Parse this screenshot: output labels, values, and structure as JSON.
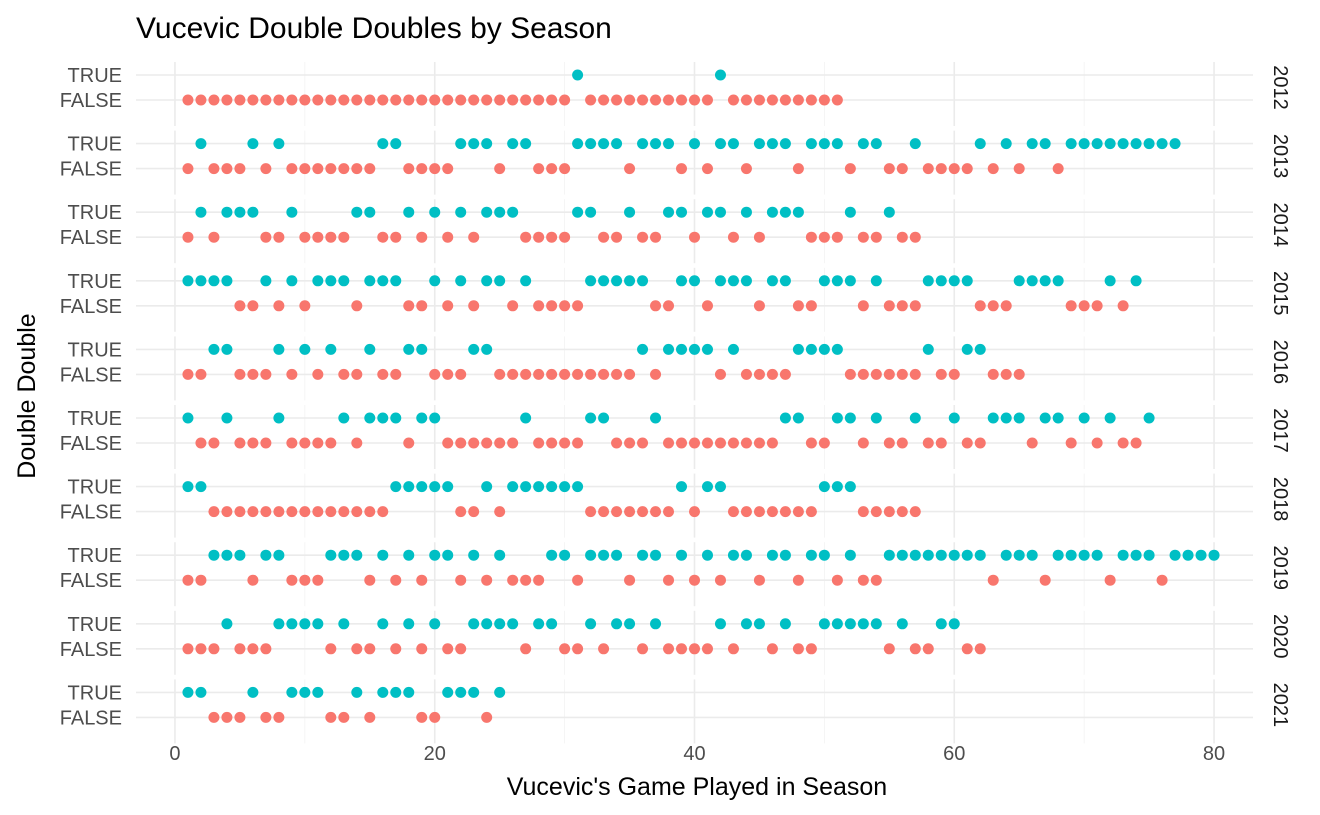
{
  "chart_data": {
    "type": "scatter",
    "facet": "row",
    "title": "Vucevic Double Doubles by Season",
    "xlabel": "Vucevic's Game Played in Season",
    "ylabel": "Double Double",
    "xlim": [
      -3,
      83
    ],
    "x_ticks": [
      0,
      20,
      40,
      60,
      80
    ],
    "y_levels": [
      "FALSE",
      "TRUE"
    ],
    "grid": true,
    "legend": "none",
    "colors": {
      "TRUE": "#00BFC4",
      "FALSE": "#F8766D"
    },
    "panels": [
      {
        "season": "2012",
        "TRUE": [
          31,
          42
        ],
        "FALSE": [
          1,
          2,
          3,
          4,
          5,
          6,
          7,
          8,
          9,
          10,
          11,
          12,
          13,
          14,
          15,
          16,
          17,
          18,
          19,
          20,
          21,
          22,
          23,
          24,
          25,
          26,
          27,
          28,
          29,
          30,
          32,
          33,
          34,
          35,
          36,
          37,
          38,
          39,
          40,
          41,
          43,
          44,
          45,
          46,
          47,
          48,
          49,
          50,
          51
        ]
      },
      {
        "season": "2013",
        "TRUE": [
          2,
          6,
          8,
          16,
          17,
          22,
          23,
          24,
          26,
          27,
          31,
          32,
          33,
          34,
          36,
          37,
          38,
          40,
          42,
          43,
          45,
          46,
          47,
          49,
          50,
          51,
          53,
          54,
          57,
          62,
          64,
          66,
          67,
          69,
          70,
          71,
          72,
          73,
          74,
          75,
          76,
          77
        ],
        "FALSE": [
          1,
          3,
          4,
          5,
          7,
          9,
          10,
          11,
          12,
          13,
          14,
          15,
          18,
          19,
          20,
          21,
          25,
          28,
          29,
          30,
          35,
          39,
          41,
          44,
          48,
          52,
          55,
          56,
          58,
          59,
          60,
          61,
          63,
          65,
          68
        ]
      },
      {
        "season": "2014",
        "TRUE": [
          2,
          4,
          5,
          6,
          9,
          14,
          15,
          18,
          20,
          22,
          24,
          25,
          26,
          31,
          32,
          35,
          38,
          39,
          41,
          42,
          44,
          46,
          47,
          48,
          52,
          55
        ],
        "FALSE": [
          1,
          3,
          7,
          8,
          10,
          11,
          12,
          13,
          16,
          17,
          19,
          21,
          23,
          27,
          28,
          29,
          30,
          33,
          34,
          36,
          37,
          40,
          43,
          45,
          49,
          50,
          51,
          53,
          54,
          56,
          57
        ]
      },
      {
        "season": "2015",
        "TRUE": [
          1,
          2,
          3,
          4,
          7,
          9,
          11,
          12,
          13,
          15,
          16,
          17,
          20,
          22,
          24,
          25,
          27,
          32,
          33,
          34,
          35,
          36,
          39,
          40,
          42,
          43,
          44,
          46,
          47,
          50,
          51,
          52,
          54,
          58,
          59,
          60,
          61,
          65,
          66,
          67,
          68,
          72,
          74
        ],
        "FALSE": [
          5,
          6,
          8,
          10,
          14,
          18,
          19,
          21,
          23,
          26,
          28,
          29,
          30,
          31,
          37,
          38,
          41,
          45,
          48,
          49,
          53,
          55,
          56,
          57,
          62,
          63,
          64,
          69,
          70,
          71,
          73
        ]
      },
      {
        "season": "2016",
        "TRUE": [
          3,
          4,
          8,
          10,
          12,
          15,
          18,
          19,
          23,
          24,
          36,
          38,
          39,
          40,
          41,
          43,
          48,
          49,
          50,
          51,
          58,
          61,
          62
        ],
        "FALSE": [
          1,
          2,
          5,
          6,
          7,
          9,
          11,
          13,
          14,
          16,
          17,
          20,
          21,
          22,
          25,
          26,
          27,
          28,
          29,
          30,
          31,
          32,
          33,
          34,
          35,
          37,
          42,
          44,
          45,
          46,
          47,
          52,
          53,
          54,
          55,
          56,
          57,
          59,
          60,
          63,
          64,
          65
        ]
      },
      {
        "season": "2017",
        "TRUE": [
          1,
          4,
          8,
          13,
          15,
          16,
          17,
          19,
          20,
          27,
          32,
          33,
          37,
          47,
          48,
          51,
          52,
          54,
          57,
          60,
          63,
          64,
          65,
          67,
          68,
          70,
          72,
          75
        ],
        "FALSE": [
          2,
          3,
          5,
          6,
          7,
          9,
          10,
          11,
          12,
          14,
          18,
          21,
          22,
          23,
          24,
          25,
          26,
          28,
          29,
          30,
          31,
          34,
          35,
          36,
          38,
          39,
          40,
          41,
          42,
          43,
          44,
          45,
          46,
          49,
          50,
          53,
          55,
          56,
          58,
          59,
          61,
          62,
          66,
          69,
          71,
          73,
          74
        ]
      },
      {
        "season": "2018",
        "TRUE": [
          1,
          2,
          17,
          18,
          19,
          20,
          21,
          24,
          26,
          27,
          28,
          29,
          30,
          31,
          39,
          41,
          42,
          50,
          51,
          52
        ],
        "FALSE": [
          3,
          4,
          5,
          6,
          7,
          8,
          9,
          10,
          11,
          12,
          13,
          14,
          15,
          16,
          22,
          23,
          25,
          32,
          33,
          34,
          35,
          36,
          37,
          38,
          40,
          43,
          44,
          45,
          46,
          47,
          48,
          49,
          53,
          54,
          55,
          56,
          57
        ]
      },
      {
        "season": "2019",
        "TRUE": [
          3,
          4,
          5,
          7,
          8,
          12,
          13,
          14,
          16,
          18,
          20,
          21,
          23,
          25,
          29,
          30,
          32,
          33,
          34,
          36,
          37,
          39,
          41,
          43,
          44,
          46,
          47,
          49,
          50,
          52,
          55,
          56,
          57,
          58,
          59,
          60,
          61,
          62,
          64,
          65,
          66,
          68,
          69,
          70,
          71,
          73,
          74,
          75,
          77,
          78,
          79,
          80
        ],
        "FALSE": [
          1,
          2,
          6,
          9,
          10,
          11,
          15,
          17,
          19,
          22,
          24,
          26,
          27,
          28,
          31,
          35,
          38,
          40,
          42,
          45,
          48,
          51,
          53,
          54,
          63,
          67,
          72,
          76
        ]
      },
      {
        "season": "2020",
        "TRUE": [
          4,
          8,
          9,
          10,
          11,
          13,
          16,
          18,
          20,
          23,
          24,
          25,
          26,
          28,
          29,
          32,
          34,
          35,
          37,
          42,
          44,
          45,
          47,
          50,
          51,
          52,
          53,
          54,
          56,
          59,
          60
        ],
        "FALSE": [
          1,
          2,
          3,
          5,
          6,
          7,
          12,
          14,
          15,
          17,
          19,
          21,
          22,
          27,
          30,
          31,
          33,
          36,
          38,
          39,
          40,
          41,
          43,
          46,
          48,
          49,
          55,
          57,
          58,
          61,
          62
        ]
      },
      {
        "season": "2021",
        "TRUE": [
          1,
          2,
          6,
          9,
          10,
          11,
          14,
          16,
          17,
          18,
          21,
          22,
          23,
          25
        ],
        "FALSE": [
          3,
          4,
          5,
          7,
          8,
          12,
          13,
          15,
          19,
          20,
          24
        ]
      }
    ]
  }
}
